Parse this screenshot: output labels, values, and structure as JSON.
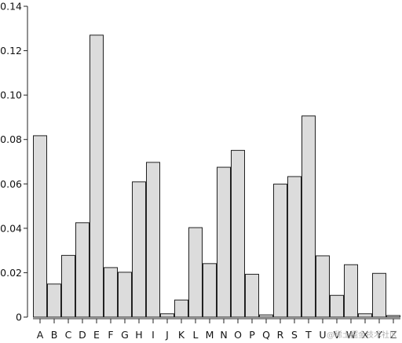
{
  "chart_data": {
    "type": "bar",
    "categories": [
      "A",
      "B",
      "C",
      "D",
      "E",
      "F",
      "G",
      "H",
      "I",
      "J",
      "K",
      "L",
      "M",
      "N",
      "O",
      "P",
      "Q",
      "R",
      "S",
      "T",
      "U",
      "V",
      "W",
      "X",
      "Y",
      "Z"
    ],
    "values": [
      0.0817,
      0.0149,
      0.0278,
      0.0425,
      0.127,
      0.0223,
      0.0202,
      0.0609,
      0.0697,
      0.0015,
      0.0077,
      0.0403,
      0.0241,
      0.0675,
      0.0751,
      0.0193,
      0.001,
      0.0599,
      0.0633,
      0.0906,
      0.0276,
      0.0098,
      0.0236,
      0.0015,
      0.0197,
      0.0007
    ],
    "ylim": [
      0,
      0.14
    ],
    "yticks": [
      "0",
      "0.02",
      "0.04",
      "0.06",
      "0.08",
      "0.10",
      "0.12",
      "0.14"
    ],
    "ytick_values": [
      0,
      0.02,
      0.04,
      0.06,
      0.08,
      0.1,
      0.12,
      0.14
    ],
    "title": "",
    "xlabel": "",
    "ylabel": "",
    "grid": false,
    "bar_fill": "#dcdcdc",
    "bar_stroke": "#222222"
  },
  "watermark": "@稀土掘金技术社区"
}
